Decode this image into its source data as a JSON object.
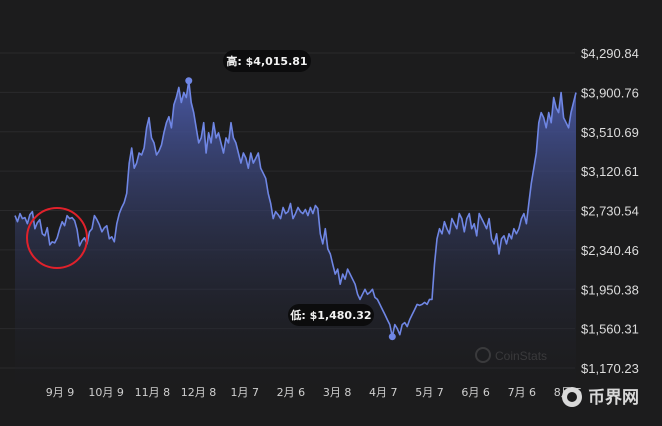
{
  "chart_data": {
    "type": "area",
    "x_ticks": [
      "9月 9",
      "10月 9",
      "11月 8",
      "12月 8",
      "1月 7",
      "2月 6",
      "3月 8",
      "4月 7",
      "5月 7",
      "6月 6",
      "7月 6",
      "8月 5"
    ],
    "y_ticks": [
      "$4,290.84",
      "$3,900.76",
      "$3,510.69",
      "$3,120.61",
      "$2,730.54",
      "$2,340.46",
      "$1,950.38",
      "$1,560.31",
      "$1,170.23"
    ],
    "ylim": [
      1170.23,
      4290.84
    ],
    "high_label": "高: $4,015.81",
    "high_value": 4015.81,
    "low_label": "低: $1,480.32",
    "low_value": 1480.32,
    "watermark": "CoinStats",
    "badge": "币界网",
    "colors": {
      "line": "#6f86e4",
      "area_top": "#4a5aa8",
      "area_bottom": "#1c1c1d",
      "annotation_circle": "#e0212b",
      "background": "#1c1c1d"
    },
    "series": [
      {
        "values": [
          2680,
          2620,
          2700,
          2650,
          2660,
          2600,
          2690,
          2720,
          2550,
          2610,
          2640,
          2500,
          2480,
          2560,
          2390,
          2420,
          2410,
          2460,
          2550,
          2620,
          2580,
          2680,
          2650,
          2660,
          2630,
          2540,
          2380,
          2430,
          2460,
          2400,
          2520,
          2550,
          2680,
          2640,
          2590,
          2520,
          2560,
          2580,
          2450,
          2470,
          2420,
          2600,
          2700,
          2760,
          2810,
          2900,
          3200,
          3350,
          3150,
          3200,
          3300,
          3280,
          3350,
          3550,
          3650,
          3450,
          3400,
          3280,
          3320,
          3380,
          3500,
          3600,
          3660,
          3550,
          3780,
          3850,
          3950,
          3800,
          3900,
          3850,
          4015,
          3800,
          3700,
          3550,
          3400,
          3450,
          3600,
          3300,
          3500,
          3400,
          3600,
          3450,
          3500,
          3400,
          3300,
          3450,
          3400,
          3600,
          3450,
          3400,
          3300,
          3200,
          3300,
          3250,
          3150,
          3300,
          3200,
          3250,
          3300,
          3150,
          3100,
          3050,
          2900,
          2800,
          2650,
          2720,
          2690,
          2650,
          2760,
          2700,
          2720,
          2800,
          2650,
          2700,
          2760,
          2720,
          2700,
          2740,
          2680,
          2760,
          2700,
          2780,
          2750,
          2500,
          2400,
          2550,
          2350,
          2300,
          2200,
          2100,
          2150,
          2000,
          2100,
          2050,
          2150,
          2100,
          2050,
          2000,
          1900,
          1850,
          1900,
          1950,
          1900,
          1920,
          1950,
          1870,
          1850,
          1800,
          1750,
          1700,
          1650,
          1600,
          1480,
          1600,
          1560,
          1500,
          1600,
          1620,
          1580,
          1650,
          1700,
          1750,
          1800,
          1790,
          1800,
          1820,
          1800,
          1850,
          1850,
          2200,
          2450,
          2550,
          2500,
          2620,
          2550,
          2500,
          2650,
          2600,
          2550,
          2700,
          2650,
          2520,
          2650,
          2700,
          2550,
          2600,
          2480,
          2700,
          2650,
          2600,
          2550,
          2650,
          2450,
          2400,
          2500,
          2300,
          2450,
          2480,
          2400,
          2500,
          2450,
          2550,
          2500,
          2550,
          2650,
          2700,
          2600,
          2800,
          3000,
          3150,
          3300,
          3600,
          3700,
          3650,
          3550,
          3700,
          3600,
          3850,
          3750,
          3700,
          3900,
          3650,
          3600,
          3550,
          3700,
          3800,
          3900
        ]
      }
    ]
  }
}
